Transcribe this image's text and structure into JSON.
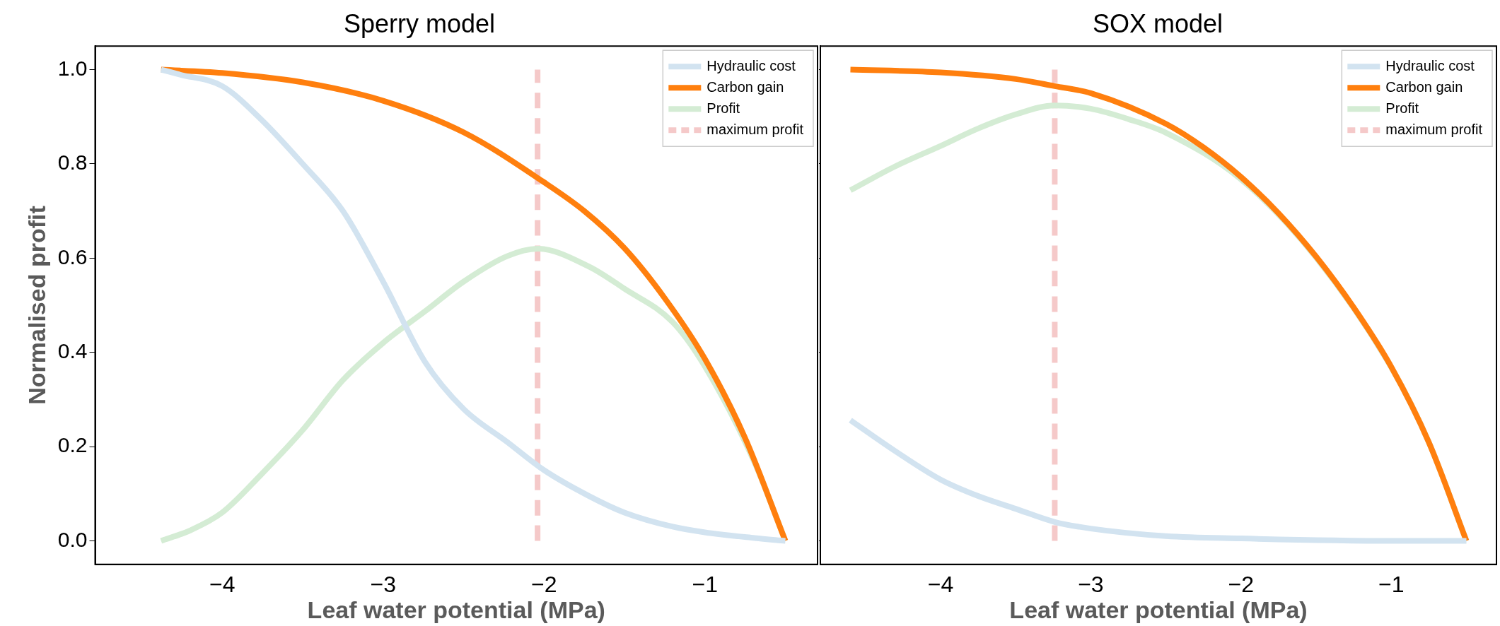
{
  "chart_data": [
    {
      "type": "line",
      "title": "Sperry model",
      "xlabel": "Leaf water potential (MPa)",
      "ylabel": "Normalised profit",
      "xlim": [
        -4.79,
        -0.3
      ],
      "xticks": [
        {
          "value": -4,
          "label": "−4"
        },
        {
          "value": -3,
          "label": "−3"
        },
        {
          "value": -2,
          "label": "−2"
        },
        {
          "value": -1,
          "label": "−1"
        }
      ],
      "ylim": [
        -0.05,
        1.05
      ],
      "yticks": [
        {
          "value": 0,
          "label": "0.0"
        },
        {
          "value": 0.2,
          "label": "0.2"
        },
        {
          "value": 0.4,
          "label": "0.4"
        },
        {
          "value": 0.6,
          "label": "0.6"
        },
        {
          "value": 0.8,
          "label": "0.8"
        },
        {
          "value": 1,
          "label": "1.0"
        }
      ],
      "grid": false,
      "legend": "top right",
      "marker": "none",
      "series": [
        {
          "name": "Hydraulic cost",
          "color": "#d2e3f0",
          "x": [
            -4.38,
            -4.27,
            -4,
            -3.76,
            -3.5,
            -3.25,
            -3,
            -2.74,
            -2.5,
            -2.23,
            -2,
            -1.72,
            -1.5,
            -1.2,
            -1,
            -0.69,
            -0.5
          ],
          "values": [
            1.0,
            0.99,
            0.965,
            0.895,
            0.8,
            0.7,
            0.55,
            0.38,
            0.28,
            0.21,
            0.15,
            0.095,
            0.06,
            0.03,
            0.018,
            0.006,
            0.0
          ]
        },
        {
          "name": "Carbon gain",
          "color": "#ff7f0e",
          "x": [
            -4.38,
            -4,
            -3.5,
            -3,
            -2.5,
            -2,
            -1.75,
            -1.5,
            -1.25,
            -1,
            -0.75,
            -0.5
          ],
          "values": [
            1.0,
            0.993,
            0.973,
            0.934,
            0.867,
            0.761,
            0.7,
            0.621,
            0.515,
            0.386,
            0.218,
            0.0
          ]
        },
        {
          "name": "Profit",
          "color": "#d4ecd4",
          "x": [
            -4.38,
            -4.2,
            -4,
            -3.76,
            -3.5,
            -3.25,
            -3,
            -2.74,
            -2.5,
            -2.23,
            -2.04,
            -1.72,
            -1.5,
            -1.2,
            -1,
            -0.69,
            -0.5
          ],
          "values": [
            0.0,
            0.022,
            0.06,
            0.14,
            0.235,
            0.341,
            0.42,
            0.487,
            0.55,
            0.604,
            0.62,
            0.582,
            0.535,
            0.464,
            0.37,
            0.165,
            0.0
          ]
        },
        {
          "name": "maximum profit",
          "color": "#f5c9c9",
          "line_style": "dashed",
          "x": [
            -2.04,
            -2.04
          ],
          "values": [
            0.0,
            1.0
          ]
        }
      ]
    },
    {
      "type": "line",
      "title": "SOX model",
      "xlabel": "Leaf water potential (MPa)",
      "xlim": [
        -4.8,
        -0.3
      ],
      "xticks": [
        {
          "value": -4,
          "label": "−4"
        },
        {
          "value": -3,
          "label": "−3"
        },
        {
          "value": -2,
          "label": "−2"
        },
        {
          "value": -1,
          "label": "−1"
        }
      ],
      "ylim": [
        -0.05,
        1.05
      ],
      "yticks": [
        0,
        0.2,
        0.4,
        0.6,
        0.8,
        1
      ],
      "tick_labels": "x",
      "grid": false,
      "legend": "top right",
      "marker": "none",
      "series": [
        {
          "name": "Hydraulic cost",
          "color": "#d2e3f0",
          "x": [
            -4.6,
            -4.3,
            -4,
            -3.75,
            -3.5,
            -3.24,
            -3,
            -2.5,
            -2,
            -1,
            -0.5
          ],
          "values": [
            0.256,
            0.19,
            0.13,
            0.095,
            0.068,
            0.04,
            0.026,
            0.01,
            0.005,
            0.0,
            0.0
          ]
        },
        {
          "name": "Carbon gain",
          "color": "#ff7f0e",
          "x": [
            -4.6,
            -4,
            -3.5,
            -3.24,
            -3,
            -2.5,
            -2.25,
            -2,
            -1.75,
            -1.5,
            -1.25,
            -1,
            -0.75,
            -0.5
          ],
          "values": [
            1.0,
            0.994,
            0.98,
            0.965,
            0.95,
            0.885,
            0.835,
            0.772,
            0.695,
            0.603,
            0.495,
            0.369,
            0.209,
            0.0
          ]
        },
        {
          "name": "Profit",
          "color": "#d4ecd4",
          "x": [
            -4.6,
            -4.3,
            -4,
            -3.75,
            -3.5,
            -3.24,
            -3,
            -2.75,
            -2.5,
            -2,
            -1.5,
            -1,
            -0.75,
            -0.5
          ],
          "values": [
            0.744,
            0.795,
            0.838,
            0.875,
            0.905,
            0.924,
            0.917,
            0.895,
            0.866,
            0.767,
            0.601,
            0.368,
            0.209,
            0.0
          ]
        },
        {
          "name": "maximum profit",
          "color": "#f5c9c9",
          "line_style": "dashed",
          "x": [
            -3.24,
            -3.24
          ],
          "values": [
            0.0,
            1.0
          ]
        }
      ]
    }
  ]
}
